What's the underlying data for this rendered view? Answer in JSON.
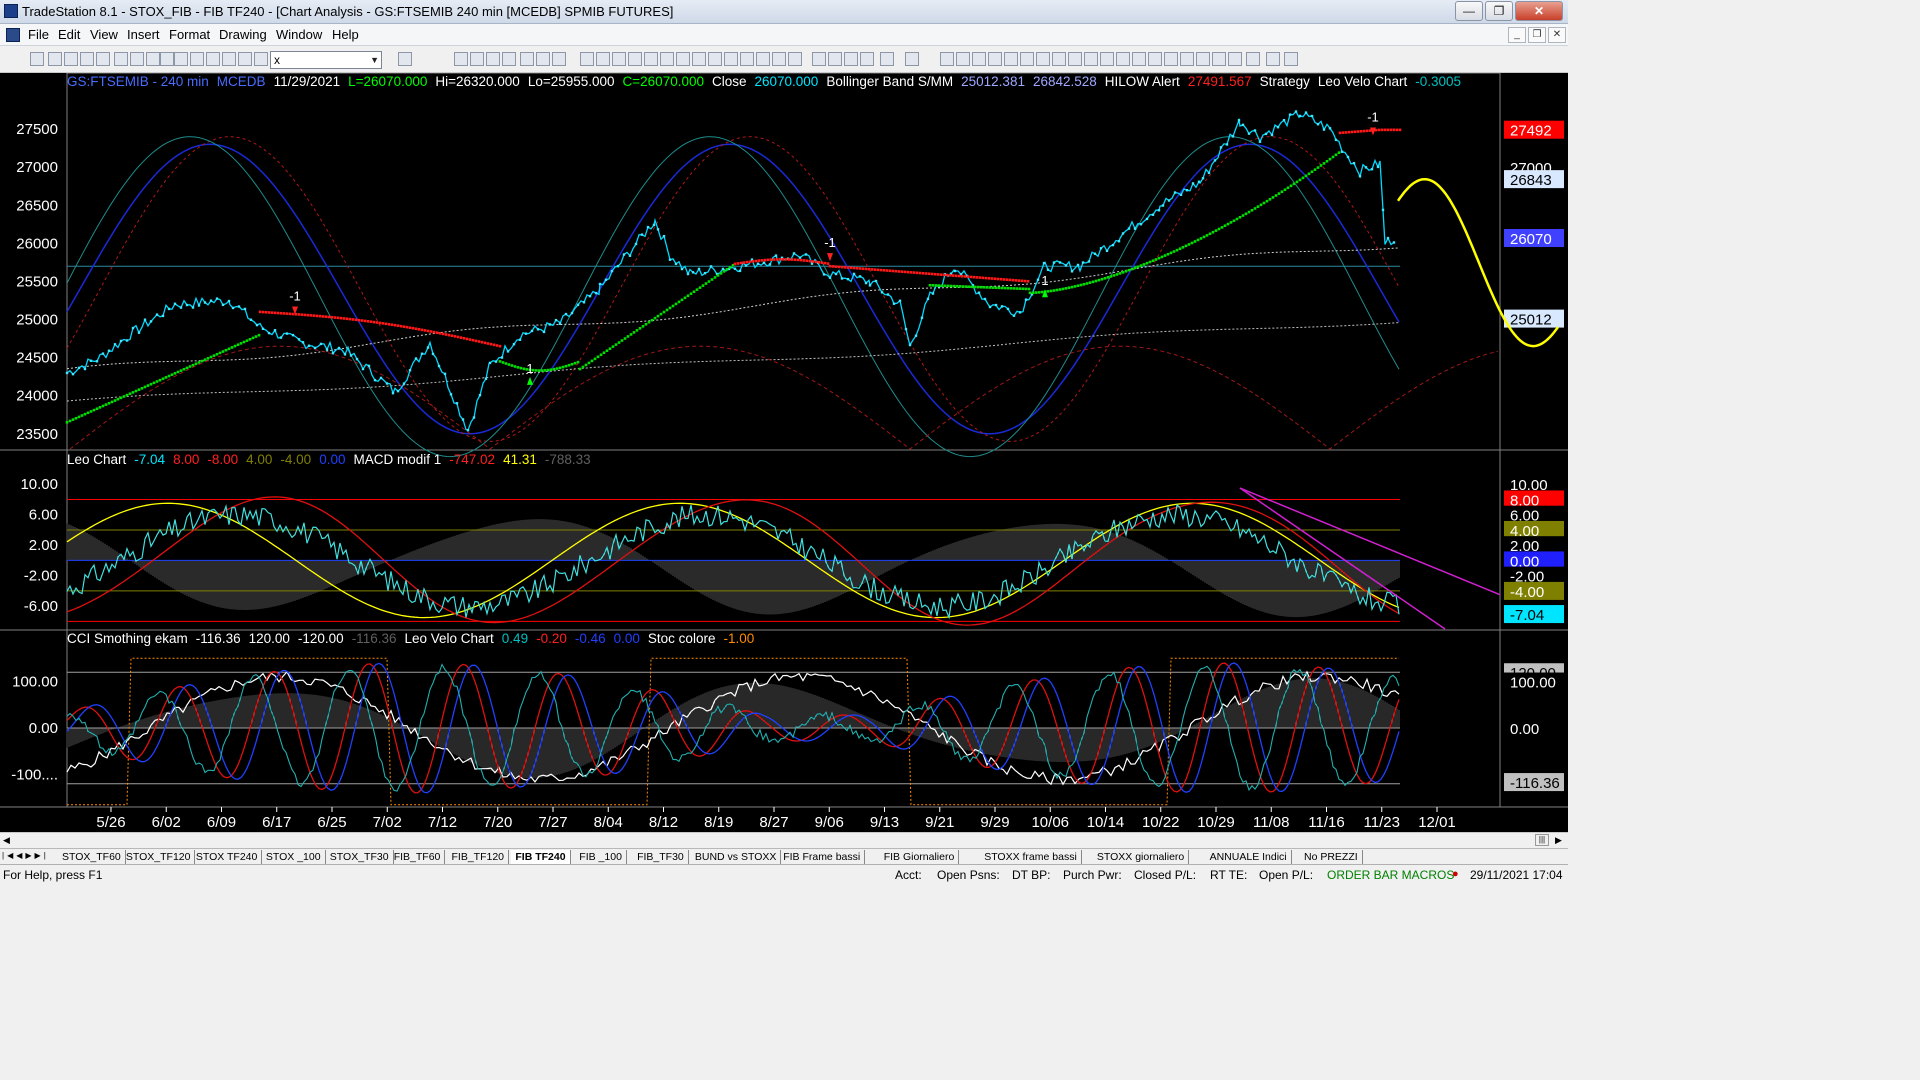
{
  "window": {
    "title": "TradeStation 8.1 - STOX_FIB - FIB TF240 - [Chart Analysis - GS:FTSEMIB  240 min  [MCEDB] SPMIB FUTURES]",
    "min": "—",
    "max": "❐",
    "close": "✕"
  },
  "menu": {
    "items": [
      "File",
      "Edit",
      "View",
      "Insert",
      "Format",
      "Drawing",
      "Window",
      "Help"
    ],
    "mdi": [
      "_",
      "❐",
      "✕"
    ]
  },
  "toolbar": {
    "symbol_value": "x"
  },
  "price_panel": {
    "header": [
      {
        "t": "GS:FTSEMIB - 240 min",
        "c": "#4a6cff"
      },
      {
        "t": "MCEDB",
        "c": "#4a6cff"
      },
      {
        "t": "11/29/2021",
        "c": "#ffffff"
      },
      {
        "t": "L=26070.000",
        "c": "#00ff00"
      },
      {
        "t": "Hi=26320.000",
        "c": "#ffffff"
      },
      {
        "t": "Lo=25955.000",
        "c": "#ffffff"
      },
      {
        "t": "C=26070.000",
        "c": "#00ff00"
      },
      {
        "t": "Close",
        "c": "#ffffff"
      },
      {
        "t": "26070.000",
        "c": "#00e5ff"
      },
      {
        "t": "Bollinger Band S/MM",
        "c": "#ffffff"
      },
      {
        "t": "25012.381",
        "c": "#9fa8ff"
      },
      {
        "t": "26842.528",
        "c": "#9fa8ff"
      },
      {
        "t": "HILOW Alert",
        "c": "#ffffff"
      },
      {
        "t": "27491.567",
        "c": "#ff2020"
      },
      {
        "t": "Strategy",
        "c": "#ffffff"
      },
      {
        "t": "Leo Velo Chart",
        "c": "#ffffff"
      },
      {
        "t": "-0.3005",
        "c": "#00c0c0"
      }
    ],
    "yticks": [
      "27500",
      "27000",
      "26500",
      "26000",
      "25500",
      "25000",
      "24500",
      "24000",
      "23500"
    ],
    "ytick_values": [
      27500,
      27000,
      26500,
      26000,
      25500,
      25000,
      24500,
      24000,
      23500
    ],
    "ylim": [
      23300,
      28000
    ],
    "right_labels": [
      {
        "t": "27492",
        "v": 27492,
        "bg": "#ff0000",
        "fg": "#ffffff"
      },
      {
        "t": "27000",
        "v": 27000,
        "bg": "#000000",
        "fg": "#ffffff"
      },
      {
        "t": "26843",
        "v": 26843,
        "bg": "#d8e8ff",
        "fg": "#000000"
      },
      {
        "t": "26070",
        "v": 26070,
        "bg": "#4040ff",
        "fg": "#ffffff"
      },
      {
        "t": "25012",
        "v": 25012,
        "bg": "#d8e8ff",
        "fg": "#000000"
      }
    ],
    "markers": [
      {
        "t": "-1",
        "x": 295,
        "v": 25250
      },
      {
        "t": "-1",
        "x": 830,
        "v": 25950
      },
      {
        "t": "1",
        "x": 530,
        "v": 24300
      },
      {
        "t": "1",
        "x": 1045,
        "v": 25450
      },
      {
        "t": "-1",
        "x": 1373,
        "v": 27600
      }
    ]
  },
  "macd_panel": {
    "header": [
      {
        "t": "Leo Chart",
        "c": "#ffffff"
      },
      {
        "t": "-7.04",
        "c": "#00e5ff"
      },
      {
        "t": "8.00",
        "c": "#ff2020"
      },
      {
        "t": "-8.00",
        "c": "#ff2020"
      },
      {
        "t": "4.00",
        "c": "#808000"
      },
      {
        "t": "-4.00",
        "c": "#808000"
      },
      {
        "t": "0.00",
        "c": "#2040ff"
      },
      {
        "t": "MACD modif 1",
        "c": "#ffffff"
      },
      {
        "t": "-747.02",
        "c": "#ff2020"
      },
      {
        "t": "41.31",
        "c": "#ffff00"
      },
      {
        "t": "-788.33",
        "c": "#606060"
      }
    ],
    "yticks": [
      "10.00",
      "6.00",
      "2.00",
      "-2.00",
      "-6.00"
    ],
    "ytick_values": [
      10,
      6,
      2,
      -2,
      -6
    ],
    "ylim": [
      -9,
      12
    ],
    "right_labels": [
      {
        "t": "10.00",
        "v": 10,
        "bg": "#000000",
        "fg": "#ffffff"
      },
      {
        "t": "8.00",
        "v": 8,
        "bg": "#ff0000",
        "fg": "#ffffff"
      },
      {
        "t": "6.00",
        "v": 6,
        "bg": "#000000",
        "fg": "#ffffff"
      },
      {
        "t": "4.00",
        "v": 4,
        "bg": "#808000",
        "fg": "#ffffff"
      },
      {
        "t": "2.00",
        "v": 2,
        "bg": "#000000",
        "fg": "#ffffff"
      },
      {
        "t": "0.00",
        "v": 0,
        "bg": "#2020ff",
        "fg": "#ffffff"
      },
      {
        "t": "-2.00",
        "v": -2,
        "bg": "#000000",
        "fg": "#ffffff"
      },
      {
        "t": "-4.00",
        "v": -4,
        "bg": "#808000",
        "fg": "#ffffff"
      },
      {
        "t": "-7.04",
        "v": -7.04,
        "bg": "#00e5ff",
        "fg": "#000000"
      }
    ]
  },
  "cci_panel": {
    "header": [
      {
        "t": "CCI Smothing ekam",
        "c": "#ffffff"
      },
      {
        "t": "-116.36",
        "c": "#ffffff"
      },
      {
        "t": "120.00",
        "c": "#ffffff"
      },
      {
        "t": "-120.00",
        "c": "#ffffff"
      },
      {
        "t": "-116.36",
        "c": "#606060"
      },
      {
        "t": "Leo Velo Chart",
        "c": "#ffffff"
      },
      {
        "t": "0.49",
        "c": "#00c0c0"
      },
      {
        "t": "-0.20",
        "c": "#ff2020"
      },
      {
        "t": "-0.46",
        "c": "#2040ff"
      },
      {
        "t": "0.00",
        "c": "#2040ff"
      },
      {
        "t": "Stoc colore",
        "c": "#ffffff"
      },
      {
        "t": "-1.00",
        "c": "#ff8c00"
      }
    ],
    "yticks": [
      "100.00",
      "0.00",
      "-100...."
    ],
    "ytick_values": [
      100,
      0,
      -100
    ],
    "ylim": [
      -170,
      170
    ],
    "right_labels": [
      {
        "t": "120.00",
        "v": 120,
        "bg": "#c0c0c0",
        "fg": "#000000"
      },
      {
        "t": "100.00",
        "v": 100,
        "bg": "#000000",
        "fg": "#ffffff"
      },
      {
        "t": "0.00",
        "v": 0,
        "bg": "#000000",
        "fg": "#ffffff"
      },
      {
        "t": "-116.36",
        "v": -116.36,
        "bg": "#c0c0c0",
        "fg": "#000000"
      }
    ]
  },
  "xaxis": {
    "labels": [
      "5/26",
      "6/02",
      "6/09",
      "6/17",
      "6/25",
      "7/02",
      "7/12",
      "7/20",
      "7/27",
      "8/04",
      "8/12",
      "8/19",
      "8/27",
      "9/06",
      "9/13",
      "9/21",
      "9/29",
      "10/06",
      "10/14",
      "10/22",
      "10/29",
      "11/08",
      "11/16",
      "11/23",
      "12/01"
    ]
  },
  "tabs": [
    "STOX_TF60",
    "STOX_TF120",
    "STOX TF240",
    "STOX _100",
    "STOX_TF30",
    "FIB_TF60",
    "FIB_TF120",
    "FIB TF240",
    "FIB _100",
    "FIB_TF30",
    "BUND vs STOXX",
    "FIB Frame bassi",
    "FIB Giornaliero",
    "STOXX frame bassi",
    "STOXX giornaliero",
    "ANNUALE Indici",
    "No PREZZI"
  ],
  "active_tab": "FIB TF240",
  "status": {
    "help": "For Help, press F1",
    "acct": "Acct:",
    "open_psns": "Open Psns:",
    "dt_bp": "DT BP:",
    "purch_pwr": "Purch Pwr:",
    "closed_pl": "Closed P/L:",
    "rt_te": "RT TE:",
    "open_pl": "Open P/L:",
    "macros": "ORDER BAR  MACROS",
    "datetime": "29/11/2021 17:04"
  }
}
